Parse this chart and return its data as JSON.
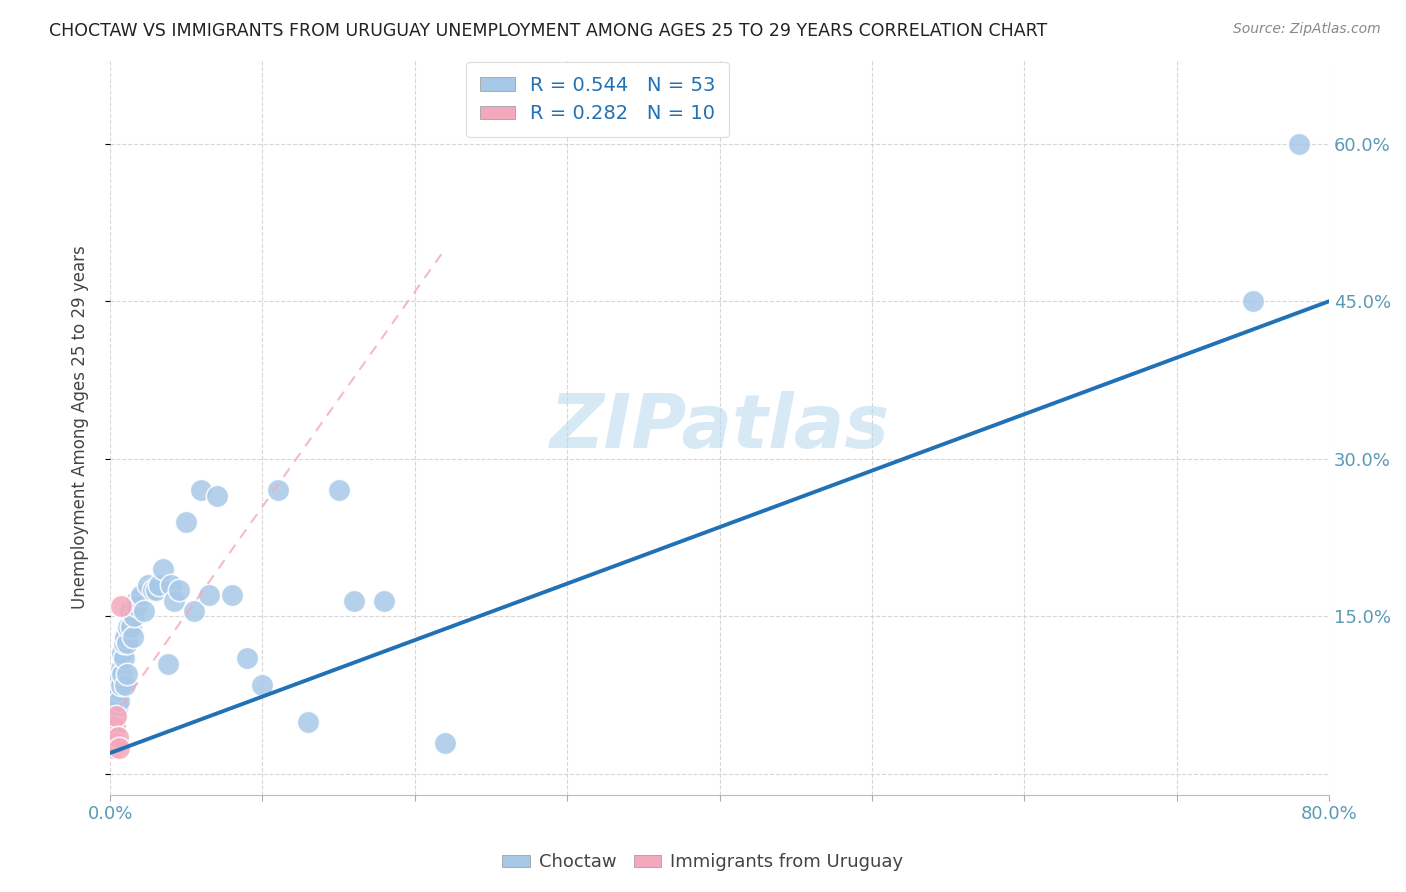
{
  "title": "CHOCTAW VS IMMIGRANTS FROM URUGUAY UNEMPLOYMENT AMONG AGES 25 TO 29 YEARS CORRELATION CHART",
  "source": "Source: ZipAtlas.com",
  "ylabel": "Unemployment Among Ages 25 to 29 years",
  "xlim": [
    0.0,
    0.8
  ],
  "ylim": [
    -0.02,
    0.68
  ],
  "xtick_positions": [
    0.0,
    0.1,
    0.2,
    0.3,
    0.4,
    0.5,
    0.6,
    0.7,
    0.8
  ],
  "xticklabels": [
    "0.0%",
    "",
    "",
    "",
    "",
    "",
    "",
    "",
    "80.0%"
  ],
  "ytick_positions": [
    0.0,
    0.15,
    0.3,
    0.45,
    0.6
  ],
  "yticklabels_right": [
    "",
    "15.0%",
    "30.0%",
    "45.0%",
    "60.0%"
  ],
  "watermark": "ZIPatlas",
  "choctaw_R": 0.544,
  "choctaw_N": 53,
  "uruguay_R": 0.282,
  "uruguay_N": 10,
  "choctaw_color": "#a8c8e8",
  "uruguay_color": "#f4a8be",
  "trendline_blue": "#2171b5",
  "trendline_pink": "#f4a8be",
  "choctaw_x": [
    0.002,
    0.003,
    0.003,
    0.004,
    0.004,
    0.005,
    0.005,
    0.006,
    0.006,
    0.007,
    0.007,
    0.008,
    0.008,
    0.009,
    0.009,
    0.01,
    0.01,
    0.011,
    0.011,
    0.012,
    0.013,
    0.014,
    0.015,
    0.016,
    0.017,
    0.018,
    0.02,
    0.022,
    0.025,
    0.028,
    0.03,
    0.032,
    0.035,
    0.038,
    0.04,
    0.042,
    0.045,
    0.05,
    0.055,
    0.06,
    0.065,
    0.07,
    0.08,
    0.09,
    0.1,
    0.11,
    0.13,
    0.15,
    0.16,
    0.18,
    0.22,
    0.75,
    0.78
  ],
  "choctaw_y": [
    0.035,
    0.05,
    0.065,
    0.055,
    0.075,
    0.065,
    0.08,
    0.07,
    0.09,
    0.085,
    0.1,
    0.095,
    0.115,
    0.11,
    0.125,
    0.085,
    0.13,
    0.095,
    0.125,
    0.14,
    0.155,
    0.14,
    0.13,
    0.15,
    0.165,
    0.16,
    0.17,
    0.155,
    0.18,
    0.175,
    0.175,
    0.18,
    0.195,
    0.105,
    0.18,
    0.165,
    0.175,
    0.24,
    0.155,
    0.27,
    0.17,
    0.265,
    0.17,
    0.11,
    0.085,
    0.27,
    0.05,
    0.27,
    0.165,
    0.165,
    0.03,
    0.45,
    0.6
  ],
  "uruguay_x": [
    0.001,
    0.002,
    0.002,
    0.003,
    0.003,
    0.004,
    0.004,
    0.005,
    0.006,
    0.007
  ],
  "uruguay_y": [
    0.03,
    0.025,
    0.04,
    0.03,
    0.045,
    0.03,
    0.055,
    0.035,
    0.025,
    0.16
  ],
  "trendline_blue_x0": 0.0,
  "trendline_blue_y0": 0.02,
  "trendline_blue_x1": 0.8,
  "trendline_blue_y1": 0.45,
  "trendline_pink_x0": 0.0,
  "trendline_pink_y0": 0.05,
  "trendline_pink_x1": 0.22,
  "trendline_pink_y1": 0.5
}
